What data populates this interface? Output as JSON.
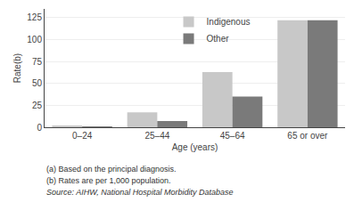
{
  "chart_data": {
    "type": "bar",
    "categories": [
      "0–24",
      "25–44",
      "45–64",
      "65 or over"
    ],
    "series": [
      {
        "name": "Indigenous",
        "color": "#c8c8c8",
        "values": [
          2,
          17,
          63,
          122
        ]
      },
      {
        "name": "Other",
        "color": "#7a7a7a",
        "values": [
          1,
          7,
          35,
          122
        ]
      }
    ],
    "xlabel": "Age (years)",
    "ylabel": "Rate(b)",
    "ylim": [
      0,
      135
    ],
    "yticks": [
      0,
      25,
      50,
      75,
      100,
      125
    ],
    "grid": true,
    "legend": "upper center",
    "annotations": [
      "(a) Based on the principal diagnosis.",
      "(b) Rates are per 1,000 population.",
      "Source: AIHW, National Hospital Morbidity Database"
    ]
  }
}
